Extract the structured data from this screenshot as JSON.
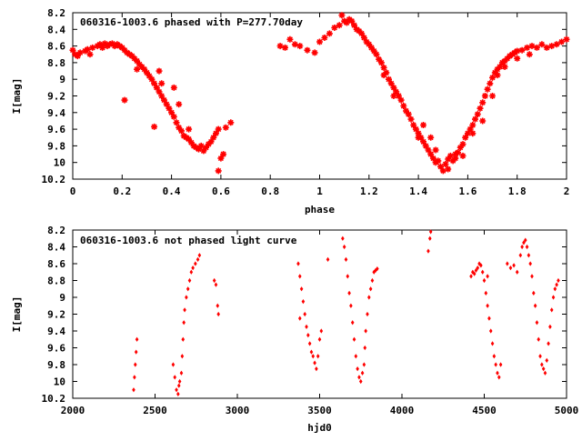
{
  "chart_data": [
    {
      "type": "scatter",
      "title": "060316-1003.6 phased with P=277.70day",
      "xlabel": "phase",
      "ylabel": "I[mag]",
      "xlim": [
        0,
        2
      ],
      "ylim": [
        10.2,
        8.2
      ],
      "y_inverted": true,
      "xticks": [
        "0",
        "0.2",
        "0.4",
        "0.6",
        "0.8",
        "1",
        "1.2",
        "1.4",
        "1.6",
        "1.8",
        "2"
      ],
      "yticks": [
        "8.2",
        "8.4",
        "8.6",
        "8.8",
        "9",
        "9.2",
        "9.4",
        "9.6",
        "9.8",
        "10",
        "10.2"
      ],
      "marker": "star",
      "color": "#ff0000",
      "points": [
        [
          0.0,
          8.65
        ],
        [
          0.01,
          8.7
        ],
        [
          0.02,
          8.72
        ],
        [
          0.03,
          8.68
        ],
        [
          0.05,
          8.66
        ],
        [
          0.06,
          8.64
        ],
        [
          0.07,
          8.7
        ],
        [
          0.08,
          8.62
        ],
        [
          0.1,
          8.6
        ],
        [
          0.11,
          8.58
        ],
        [
          0.12,
          8.62
        ],
        [
          0.13,
          8.57
        ],
        [
          0.14,
          8.6
        ],
        [
          0.15,
          8.58
        ],
        [
          0.16,
          8.57
        ],
        [
          0.17,
          8.6
        ],
        [
          0.18,
          8.58
        ],
        [
          0.19,
          8.6
        ],
        [
          0.2,
          8.62
        ],
        [
          0.21,
          8.65
        ],
        [
          0.22,
          8.68
        ],
        [
          0.23,
          8.7
        ],
        [
          0.24,
          8.72
        ],
        [
          0.25,
          8.75
        ],
        [
          0.26,
          8.78
        ],
        [
          0.27,
          8.82
        ],
        [
          0.28,
          8.85
        ],
        [
          0.29,
          8.88
        ],
        [
          0.3,
          8.92
        ],
        [
          0.31,
          8.96
        ],
        [
          0.32,
          9.0
        ],
        [
          0.33,
          9.05
        ],
        [
          0.34,
          9.1
        ],
        [
          0.35,
          9.15
        ],
        [
          0.36,
          9.2
        ],
        [
          0.37,
          9.25
        ],
        [
          0.38,
          9.3
        ],
        [
          0.39,
          9.35
        ],
        [
          0.4,
          9.4
        ],
        [
          0.41,
          9.45
        ],
        [
          0.42,
          9.52
        ],
        [
          0.43,
          9.58
        ],
        [
          0.44,
          9.62
        ],
        [
          0.45,
          9.68
        ],
        [
          0.46,
          9.7
        ],
        [
          0.47,
          9.72
        ],
        [
          0.48,
          9.76
        ],
        [
          0.49,
          9.8
        ],
        [
          0.5,
          9.82
        ],
        [
          0.51,
          9.84
        ],
        [
          0.52,
          9.8
        ],
        [
          0.53,
          9.86
        ],
        [
          0.54,
          9.82
        ],
        [
          0.55,
          9.78
        ],
        [
          0.56,
          9.75
        ],
        [
          0.57,
          9.7
        ],
        [
          0.58,
          9.65
        ],
        [
          0.59,
          9.6
        ],
        [
          0.6,
          9.95
        ],
        [
          0.61,
          9.9
        ],
        [
          0.62,
          9.58
        ],
        [
          0.64,
          9.52
        ],
        [
          0.59,
          10.1
        ],
        [
          0.21,
          9.25
        ],
        [
          0.33,
          9.57
        ],
        [
          0.35,
          8.9
        ],
        [
          0.41,
          9.1
        ],
        [
          0.26,
          8.88
        ],
        [
          0.36,
          9.05
        ],
        [
          0.43,
          9.3
        ],
        [
          0.47,
          9.6
        ],
        [
          0.84,
          8.6
        ],
        [
          0.86,
          8.62
        ],
        [
          0.88,
          8.52
        ],
        [
          0.9,
          8.58
        ],
        [
          0.92,
          8.6
        ],
        [
          0.95,
          8.65
        ],
        [
          0.98,
          8.68
        ],
        [
          1.0,
          8.55
        ],
        [
          1.02,
          8.5
        ],
        [
          1.04,
          8.45
        ],
        [
          1.06,
          8.38
        ],
        [
          1.08,
          8.35
        ],
        [
          1.09,
          8.23
        ],
        [
          1.1,
          8.3
        ],
        [
          1.11,
          8.32
        ],
        [
          1.12,
          8.28
        ],
        [
          1.13,
          8.3
        ],
        [
          1.14,
          8.35
        ],
        [
          1.15,
          8.4
        ],
        [
          1.16,
          8.42
        ],
        [
          1.17,
          8.45
        ],
        [
          1.18,
          8.5
        ],
        [
          1.19,
          8.55
        ],
        [
          1.2,
          8.58
        ],
        [
          1.21,
          8.62
        ],
        [
          1.22,
          8.66
        ],
        [
          1.23,
          8.7
        ],
        [
          1.24,
          8.76
        ],
        [
          1.25,
          8.8
        ],
        [
          1.26,
          8.86
        ],
        [
          1.27,
          8.92
        ],
        [
          1.28,
          9.0
        ],
        [
          1.29,
          9.05
        ],
        [
          1.3,
          9.1
        ],
        [
          1.31,
          9.15
        ],
        [
          1.32,
          9.2
        ],
        [
          1.33,
          9.25
        ],
        [
          1.34,
          9.32
        ],
        [
          1.35,
          9.38
        ],
        [
          1.36,
          9.42
        ],
        [
          1.37,
          9.48
        ],
        [
          1.38,
          9.55
        ],
        [
          1.39,
          9.6
        ],
        [
          1.4,
          9.65
        ],
        [
          1.41,
          9.7
        ],
        [
          1.42,
          9.75
        ],
        [
          1.43,
          9.8
        ],
        [
          1.44,
          9.85
        ],
        [
          1.45,
          9.9
        ],
        [
          1.46,
          9.95
        ],
        [
          1.47,
          10.0
        ],
        [
          1.48,
          9.98
        ],
        [
          1.49,
          10.05
        ],
        [
          1.5,
          10.1
        ],
        [
          1.51,
          10.02
        ],
        [
          1.52,
          9.96
        ],
        [
          1.53,
          9.92
        ],
        [
          1.54,
          9.98
        ],
        [
          1.55,
          9.9
        ],
        [
          1.56,
          9.88
        ],
        [
          1.57,
          9.82
        ],
        [
          1.58,
          9.78
        ],
        [
          1.59,
          9.7
        ],
        [
          1.6,
          9.65
        ],
        [
          1.61,
          9.6
        ],
        [
          1.62,
          9.55
        ],
        [
          1.63,
          9.48
        ],
        [
          1.64,
          9.42
        ],
        [
          1.65,
          9.35
        ],
        [
          1.66,
          9.28
        ],
        [
          1.67,
          9.2
        ],
        [
          1.68,
          9.12
        ],
        [
          1.69,
          9.05
        ],
        [
          1.7,
          8.98
        ],
        [
          1.71,
          8.92
        ],
        [
          1.72,
          8.88
        ],
        [
          1.73,
          8.85
        ],
        [
          1.74,
          8.8
        ],
        [
          1.75,
          8.78
        ],
        [
          1.76,
          8.75
        ],
        [
          1.77,
          8.72
        ],
        [
          1.78,
          8.7
        ],
        [
          1.79,
          8.68
        ],
        [
          1.8,
          8.66
        ],
        [
          1.82,
          8.65
        ],
        [
          1.84,
          8.62
        ],
        [
          1.86,
          8.6
        ],
        [
          1.88,
          8.62
        ],
        [
          1.9,
          8.58
        ],
        [
          1.92,
          8.62
        ],
        [
          1.94,
          8.6
        ],
        [
          1.96,
          8.58
        ],
        [
          1.98,
          8.55
        ],
        [
          2.0,
          8.52
        ],
        [
          1.45,
          9.7
        ],
        [
          1.47,
          9.85
        ],
        [
          1.52,
          10.08
        ],
        [
          1.55,
          9.95
        ],
        [
          1.58,
          9.92
        ],
        [
          1.62,
          9.65
        ],
        [
          1.66,
          9.5
        ],
        [
          1.7,
          9.2
        ],
        [
          1.72,
          8.95
        ],
        [
          1.75,
          8.85
        ],
        [
          1.8,
          8.75
        ],
        [
          1.85,
          8.7
        ],
        [
          1.3,
          9.2
        ],
        [
          1.26,
          8.95
        ],
        [
          1.4,
          9.7
        ],
        [
          1.42,
          9.55
        ]
      ]
    },
    {
      "type": "scatter",
      "title": "060316-1003.6 not phased light curve",
      "xlabel": "hjd0",
      "ylabel": "I[mag]",
      "xlim": [
        2000,
        5000
      ],
      "ylim": [
        10.2,
        8.2
      ],
      "y_inverted": true,
      "xticks": [
        "2000",
        "2500",
        "3000",
        "3500",
        "4000",
        "4500",
        "5000"
      ],
      "yticks": [
        "8.2",
        "8.4",
        "8.6",
        "8.8",
        "9",
        "9.2",
        "9.4",
        "9.6",
        "9.8",
        "10",
        "10.2"
      ],
      "marker": "diamond",
      "color": "#ff0000",
      "points": [
        [
          2370,
          10.1
        ],
        [
          2375,
          9.95
        ],
        [
          2380,
          9.8
        ],
        [
          2385,
          9.65
        ],
        [
          2390,
          9.5
        ],
        [
          2610,
          9.8
        ],
        [
          2620,
          9.95
        ],
        [
          2630,
          10.1
        ],
        [
          2640,
          10.15
        ],
        [
          2645,
          10.05
        ],
        [
          2650,
          10.0
        ],
        [
          2660,
          9.9
        ],
        [
          2665,
          9.7
        ],
        [
          2670,
          9.5
        ],
        [
          2675,
          9.3
        ],
        [
          2680,
          9.15
        ],
        [
          2690,
          9.0
        ],
        [
          2700,
          8.9
        ],
        [
          2710,
          8.8
        ],
        [
          2720,
          8.7
        ],
        [
          2730,
          8.65
        ],
        [
          2745,
          8.6
        ],
        [
          2760,
          8.55
        ],
        [
          2770,
          8.5
        ],
        [
          2860,
          8.8
        ],
        [
          2870,
          8.85
        ],
        [
          2880,
          9.1
        ],
        [
          2885,
          9.2
        ],
        [
          3370,
          8.6
        ],
        [
          3380,
          8.75
        ],
        [
          3390,
          8.9
        ],
        [
          3400,
          9.05
        ],
        [
          3410,
          9.2
        ],
        [
          3420,
          9.35
        ],
        [
          3430,
          9.45
        ],
        [
          3440,
          9.55
        ],
        [
          3450,
          9.65
        ],
        [
          3460,
          9.7
        ],
        [
          3470,
          9.78
        ],
        [
          3480,
          9.85
        ],
        [
          3490,
          9.7
        ],
        [
          3500,
          9.5
        ],
        [
          3510,
          9.4
        ],
        [
          3380,
          9.25
        ],
        [
          3550,
          8.55
        ],
        [
          3640,
          8.3
        ],
        [
          3650,
          8.4
        ],
        [
          3660,
          8.55
        ],
        [
          3670,
          8.75
        ],
        [
          3680,
          8.95
        ],
        [
          3690,
          9.1
        ],
        [
          3700,
          9.3
        ],
        [
          3710,
          9.5
        ],
        [
          3720,
          9.7
        ],
        [
          3730,
          9.85
        ],
        [
          3740,
          9.95
        ],
        [
          3750,
          10.0
        ],
        [
          3760,
          9.9
        ],
        [
          3770,
          9.8
        ],
        [
          3775,
          9.6
        ],
        [
          3780,
          9.4
        ],
        [
          3790,
          9.2
        ],
        [
          3800,
          9.0
        ],
        [
          3810,
          8.9
        ],
        [
          3820,
          8.8
        ],
        [
          3830,
          8.7
        ],
        [
          3840,
          8.68
        ],
        [
          3850,
          8.66
        ],
        [
          4160,
          8.45
        ],
        [
          4170,
          8.3
        ],
        [
          4175,
          8.22
        ],
        [
          4420,
          8.75
        ],
        [
          4430,
          8.7
        ],
        [
          4440,
          8.72
        ],
        [
          4450,
          8.68
        ],
        [
          4460,
          8.65
        ],
        [
          4470,
          8.6
        ],
        [
          4480,
          8.62
        ],
        [
          4490,
          8.7
        ],
        [
          4500,
          8.8
        ],
        [
          4510,
          8.95
        ],
        [
          4520,
          9.1
        ],
        [
          4530,
          9.25
        ],
        [
          4540,
          9.4
        ],
        [
          4550,
          9.55
        ],
        [
          4560,
          9.7
        ],
        [
          4570,
          9.8
        ],
        [
          4580,
          9.9
        ],
        [
          4590,
          9.95
        ],
        [
          4600,
          9.8
        ],
        [
          4520,
          8.75
        ],
        [
          4640,
          8.6
        ],
        [
          4660,
          8.65
        ],
        [
          4680,
          8.62
        ],
        [
          4700,
          8.7
        ],
        [
          4720,
          8.5
        ],
        [
          4730,
          8.4
        ],
        [
          4740,
          8.35
        ],
        [
          4750,
          8.32
        ],
        [
          4760,
          8.4
        ],
        [
          4770,
          8.5
        ],
        [
          4780,
          8.6
        ],
        [
          4790,
          8.75
        ],
        [
          4800,
          8.95
        ],
        [
          4810,
          9.1
        ],
        [
          4820,
          9.3
        ],
        [
          4830,
          9.5
        ],
        [
          4840,
          9.7
        ],
        [
          4850,
          9.8
        ],
        [
          4860,
          9.85
        ],
        [
          4870,
          9.9
        ],
        [
          4880,
          9.75
        ],
        [
          4890,
          9.55
        ],
        [
          4900,
          9.35
        ],
        [
          4910,
          9.15
        ],
        [
          4920,
          9.0
        ],
        [
          4930,
          8.9
        ],
        [
          4940,
          8.85
        ],
        [
          4950,
          8.8
        ]
      ]
    }
  ]
}
